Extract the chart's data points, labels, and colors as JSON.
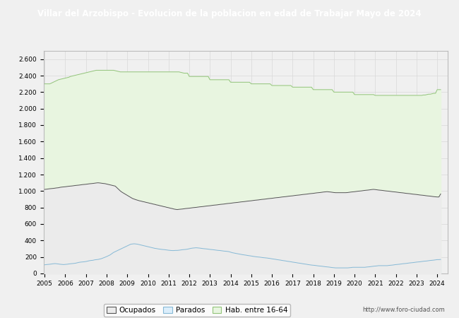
{
  "title": "Villar del Arzobispo - Evolucion de la poblacion en edad de Trabajar Mayo de 2024",
  "title_bg": "#4472c4",
  "title_color": "#ffffff",
  "ylim": [
    0,
    2700
  ],
  "yticks": [
    0,
    200,
    400,
    600,
    800,
    1000,
    1200,
    1400,
    1600,
    1800,
    2000,
    2200,
    2400,
    2600
  ],
  "ytick_labels": [
    "0",
    "200",
    "400",
    "600",
    "800",
    "1.000",
    "1.200",
    "1.400",
    "1.600",
    "1.800",
    "2.000",
    "2.200",
    "2.400",
    "2.600"
  ],
  "url_text": "http://www.foro-ciudad.com",
  "legend_labels": [
    "Ocupados",
    "Parados",
    "Hab. entre 16-64"
  ],
  "legend_facecolors": [
    "#f2f2f2",
    "#ddeeff",
    "#e8f5e0"
  ],
  "legend_edgecolors": [
    "#888888",
    "#88bbdd",
    "#88cc88"
  ],
  "bg_color": "#f0f0f0",
  "plot_bg": "#f0f0f0",
  "grid_color": "#d8d8d8",
  "hab1664": [
    2300,
    2300,
    2300,
    2300,
    2310,
    2320,
    2330,
    2340,
    2350,
    2355,
    2360,
    2365,
    2370,
    2375,
    2380,
    2390,
    2395,
    2400,
    2405,
    2410,
    2415,
    2420,
    2425,
    2430,
    2435,
    2440,
    2445,
    2450,
    2455,
    2460,
    2465,
    2465,
    2465,
    2465,
    2465,
    2465,
    2465,
    2465,
    2465,
    2465,
    2465,
    2460,
    2455,
    2450,
    2445,
    2445,
    2445,
    2445,
    2445,
    2445,
    2445,
    2445,
    2445,
    2445,
    2445,
    2445,
    2445,
    2445,
    2445,
    2445,
    2445,
    2445,
    2445,
    2445,
    2445,
    2445,
    2445,
    2445,
    2445,
    2445,
    2445,
    2445,
    2445,
    2445,
    2445,
    2445,
    2445,
    2445,
    2445,
    2440,
    2435,
    2430,
    2430,
    2430,
    2390,
    2390,
    2390,
    2390,
    2390,
    2390,
    2390,
    2390,
    2390,
    2390,
    2390,
    2390,
    2350,
    2350,
    2350,
    2350,
    2350,
    2350,
    2350,
    2350,
    2350,
    2350,
    2350,
    2350,
    2320,
    2320,
    2320,
    2320,
    2320,
    2320,
    2320,
    2320,
    2320,
    2320,
    2320,
    2320,
    2300,
    2300,
    2300,
    2300,
    2300,
    2300,
    2300,
    2300,
    2300,
    2300,
    2300,
    2300,
    2280,
    2280,
    2280,
    2280,
    2280,
    2280,
    2280,
    2280,
    2280,
    2280,
    2280,
    2280,
    2260,
    2260,
    2260,
    2260,
    2260,
    2260,
    2260,
    2260,
    2260,
    2260,
    2260,
    2260,
    2230,
    2230,
    2230,
    2230,
    2230,
    2230,
    2230,
    2230,
    2230,
    2230,
    2230,
    2230,
    2200,
    2200,
    2200,
    2200,
    2200,
    2200,
    2200,
    2200,
    2200,
    2200,
    2200,
    2200,
    2170,
    2170,
    2170,
    2170,
    2170,
    2170,
    2170,
    2170,
    2170,
    2170,
    2170,
    2170,
    2160,
    2160,
    2160,
    2160,
    2160,
    2160,
    2160,
    2160,
    2160,
    2160,
    2160,
    2160,
    2160,
    2160,
    2160,
    2160,
    2160,
    2160,
    2160,
    2160,
    2160,
    2160,
    2160,
    2160,
    2160,
    2160,
    2160,
    2160,
    2165,
    2165,
    2170,
    2175,
    2175,
    2180,
    2185,
    2185,
    2230,
    2230,
    2230
  ],
  "parados": [
    105,
    108,
    110,
    112,
    115,
    118,
    120,
    118,
    115,
    112,
    110,
    108,
    110,
    112,
    115,
    118,
    120,
    122,
    125,
    130,
    135,
    138,
    140,
    142,
    145,
    150,
    155,
    158,
    160,
    165,
    168,
    170,
    175,
    180,
    188,
    195,
    205,
    215,
    225,
    240,
    255,
    265,
    275,
    285,
    295,
    305,
    315,
    325,
    335,
    345,
    355,
    358,
    360,
    358,
    355,
    350,
    345,
    340,
    335,
    330,
    325,
    320,
    315,
    310,
    305,
    302,
    298,
    295,
    292,
    290,
    288,
    285,
    282,
    280,
    278,
    278,
    280,
    280,
    282,
    285,
    288,
    290,
    292,
    295,
    300,
    305,
    308,
    310,
    312,
    310,
    308,
    305,
    302,
    300,
    298,
    295,
    292,
    290,
    288,
    285,
    282,
    280,
    278,
    275,
    272,
    270,
    268,
    265,
    258,
    252,
    248,
    244,
    240,
    236,
    232,
    228,
    225,
    222,
    218,
    215,
    212,
    208,
    205,
    202,
    200,
    198,
    195,
    192,
    190,
    188,
    185,
    182,
    178,
    175,
    172,
    168,
    165,
    162,
    158,
    155,
    152,
    148,
    145,
    142,
    138,
    135,
    132,
    128,
    125,
    122,
    118,
    115,
    112,
    108,
    105,
    102,
    100,
    98,
    95,
    92,
    90,
    88,
    85,
    82,
    80,
    78,
    75,
    72,
    70,
    68,
    68,
    68,
    68,
    68,
    68,
    68,
    68,
    70,
    72,
    75,
    75,
    75,
    75,
    75,
    75,
    75,
    75,
    78,
    80,
    82,
    85,
    88,
    90,
    92,
    95,
    95,
    95,
    95,
    95,
    95,
    98,
    100,
    102,
    105,
    108,
    110,
    112,
    115,
    118,
    120,
    122,
    125,
    128,
    130,
    132,
    135,
    138,
    140,
    142,
    145,
    148,
    150,
    152,
    155,
    158,
    160,
    162,
    165,
    168,
    168,
    170
  ],
  "ocupados": [
    1020,
    1022,
    1025,
    1028,
    1030,
    1032,
    1035,
    1038,
    1040,
    1045,
    1048,
    1050,
    1052,
    1055,
    1058,
    1060,
    1062,
    1065,
    1068,
    1070,
    1072,
    1075,
    1078,
    1080,
    1082,
    1085,
    1088,
    1090,
    1092,
    1095,
    1098,
    1100,
    1098,
    1095,
    1092,
    1090,
    1085,
    1080,
    1075,
    1070,
    1065,
    1060,
    1040,
    1020,
    1000,
    985,
    972,
    960,
    948,
    935,
    922,
    910,
    902,
    895,
    888,
    882,
    878,
    872,
    868,
    862,
    858,
    852,
    848,
    842,
    838,
    832,
    828,
    822,
    818,
    812,
    808,
    802,
    798,
    792,
    788,
    782,
    778,
    775,
    778,
    780,
    782,
    785,
    788,
    790,
    792,
    795,
    798,
    800,
    802,
    805,
    808,
    810,
    812,
    815,
    818,
    820,
    822,
    825,
    828,
    830,
    832,
    835,
    838,
    840,
    842,
    845,
    848,
    850,
    852,
    855,
    858,
    860,
    862,
    865,
    868,
    870,
    872,
    875,
    878,
    880,
    882,
    885,
    888,
    890,
    892,
    895,
    898,
    900,
    902,
    905,
    908,
    910,
    912,
    915,
    918,
    920,
    922,
    925,
    928,
    930,
    932,
    935,
    938,
    940,
    942,
    945,
    948,
    950,
    952,
    955,
    958,
    960,
    962,
    965,
    968,
    970,
    972,
    975,
    978,
    980,
    982,
    985,
    988,
    990,
    992,
    990,
    988,
    985,
    982,
    980,
    980,
    980,
    980,
    980,
    980,
    980,
    982,
    985,
    988,
    990,
    992,
    995,
    998,
    1000,
    1002,
    1005,
    1008,
    1010,
    1012,
    1015,
    1018,
    1020,
    1018,
    1015,
    1012,
    1010,
    1008,
    1005,
    1002,
    1000,
    998,
    995,
    992,
    990,
    988,
    985,
    982,
    980,
    978,
    975,
    972,
    970,
    968,
    965,
    962,
    960,
    958,
    955,
    952,
    950,
    948,
    945,
    942,
    940,
    938,
    935,
    932,
    930,
    928,
    928,
    965
  ]
}
